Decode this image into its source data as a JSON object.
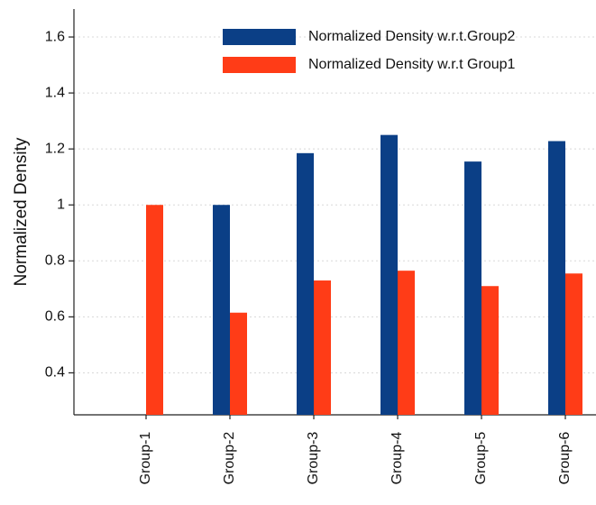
{
  "chart_data": {
    "type": "bar",
    "y_label": "Normalized Density",
    "categories": [
      "Group-1",
      "Group-2",
      "Group-3",
      "Group-4",
      "Group-5",
      "Group-6"
    ],
    "series": [
      {
        "name": "Normalized Density w.r.t.Group2",
        "color": "#0b3f86",
        "values": [
          null,
          1.0,
          1.185,
          1.25,
          1.155,
          1.228
        ]
      },
      {
        "name": "Normalized Density w.r.t Group1",
        "color": "#ff3c17",
        "values": [
          1.0,
          0.615,
          0.73,
          0.765,
          0.71,
          0.755
        ]
      }
    ],
    "ylim": [
      0.25,
      1.7
    ],
    "yticks": [
      0.4,
      0.6,
      0.8,
      1,
      1.2,
      1.4,
      1.6
    ],
    "grid": true,
    "legend": "upper right"
  }
}
